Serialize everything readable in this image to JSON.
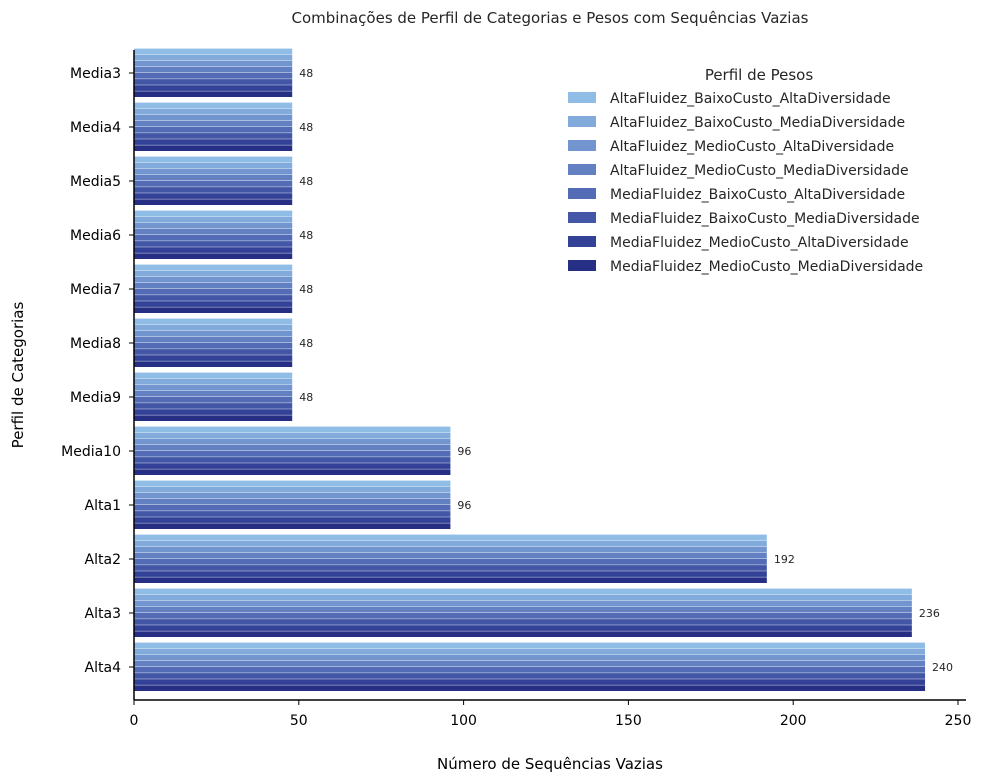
{
  "chart_data": {
    "type": "bar",
    "orientation": "horizontal",
    "title": "Combinações de Perfil de Categorias e Pesos com Sequências Vazias",
    "xlabel": "Número de Sequências Vazias",
    "ylabel": "Perfil de Categorias",
    "xlim": [
      0,
      250
    ],
    "xticks": [
      0,
      50,
      100,
      150,
      200,
      250
    ],
    "grid": false,
    "legend_title": "Perfil de Pesos",
    "legend_position": "top-right",
    "categories": [
      "Media3",
      "Media4",
      "Media5",
      "Media6",
      "Media7",
      "Media8",
      "Media9",
      "Media10",
      "Alta1",
      "Alta2",
      "Alta3",
      "Alta4"
    ],
    "totals": [
      "48",
      "48",
      "48",
      "48",
      "48",
      "48",
      "48",
      "96",
      "96",
      "192",
      "236",
      "240"
    ],
    "series": [
      {
        "name": "AltaFluidez_BaixoCusto_AltaDiversidade",
        "color": "#8fbde6",
        "values": [
          48,
          48,
          48,
          48,
          48,
          48,
          48,
          96,
          96,
          192,
          236,
          240
        ]
      },
      {
        "name": "AltaFluidez_BaixoCusto_MediaDiversidade",
        "color": "#82abdb",
        "values": [
          48,
          48,
          48,
          48,
          48,
          48,
          48,
          96,
          96,
          192,
          236,
          240
        ]
      },
      {
        "name": "AltaFluidez_MedioCusto_AltaDiversidade",
        "color": "#7395cf",
        "values": [
          48,
          48,
          48,
          48,
          48,
          48,
          48,
          96,
          96,
          192,
          236,
          240
        ]
      },
      {
        "name": "AltaFluidez_MedioCusto_MediaDiversidade",
        "color": "#6381c2",
        "values": [
          48,
          48,
          48,
          48,
          48,
          48,
          48,
          96,
          96,
          192,
          236,
          240
        ]
      },
      {
        "name": "MediaFluidez_BaixoCusto_AltaDiversidade",
        "color": "#536cb5",
        "values": [
          48,
          48,
          48,
          48,
          48,
          48,
          48,
          96,
          96,
          192,
          236,
          240
        ]
      },
      {
        "name": "MediaFluidez_BaixoCusto_MediaDiversidade",
        "color": "#4357a6",
        "values": [
          48,
          48,
          48,
          48,
          48,
          48,
          48,
          96,
          96,
          192,
          236,
          240
        ]
      },
      {
        "name": "MediaFluidez_MedioCusto_AltaDiversidade",
        "color": "#334197",
        "values": [
          48,
          48,
          48,
          48,
          48,
          48,
          48,
          96,
          96,
          192,
          236,
          240
        ]
      },
      {
        "name": "MediaFluidez_MedioCusto_MediaDiversidade",
        "color": "#262f84",
        "values": [
          48,
          48,
          48,
          48,
          48,
          48,
          48,
          96,
          96,
          192,
          236,
          240
        ]
      }
    ]
  }
}
